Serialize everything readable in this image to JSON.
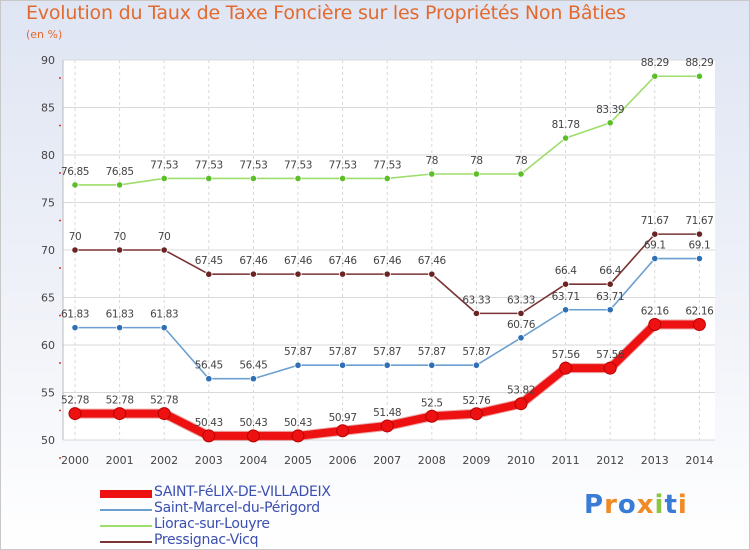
{
  "title": "Evolution du Taux de Taxe Foncière sur les Propriétés Non Bâties",
  "unit": "(en %)",
  "brand": {
    "text": "Proxiti",
    "letters": [
      "P",
      "r",
      "o",
      "x",
      "i",
      "t",
      "i"
    ]
  },
  "chart_data": {
    "type": "line",
    "title": "Evolution du Taux de Taxe Foncière sur les Propriétés Non Bâties",
    "ylabel": "(en %)",
    "xlabel": "",
    "ylim": [
      50,
      90
    ],
    "yticks": [
      50,
      55,
      60,
      65,
      70,
      75,
      80,
      85,
      90
    ],
    "x": [
      "2000",
      "2001",
      "2002",
      "2003",
      "2004",
      "2005",
      "2006",
      "2007",
      "2008",
      "2009",
      "2010",
      "2011",
      "2012",
      "2013",
      "2014"
    ],
    "grid": true,
    "legend_position": "bottom-left",
    "series": [
      {
        "name": "SAINT-FéLIX-DE-VILLADEIX",
        "color": "#ee1111",
        "marker": "#ee1111",
        "width": 8,
        "values": [
          52.78,
          52.78,
          52.78,
          50.43,
          50.43,
          50.43,
          50.97,
          51.48,
          52.5,
          52.76,
          53.82,
          57.56,
          57.56,
          62.16,
          62.16
        ],
        "labels": [
          "52.78",
          "52.78",
          "52.78",
          "50.43",
          "50.43",
          "50.43",
          "50.97",
          "51.48",
          "52.5",
          "52.76",
          "53.82",
          "57.56",
          "57.56",
          "62.16",
          "62.16"
        ]
      },
      {
        "name": "Saint-Marcel-du-Périgord",
        "color": "#6a9fd0",
        "marker": "#2f6fb5",
        "width": 1.6,
        "values": [
          61.83,
          61.83,
          61.83,
          56.45,
          56.45,
          57.87,
          57.87,
          57.87,
          57.87,
          57.87,
          60.76,
          63.71,
          63.71,
          69.1,
          69.1
        ],
        "labels": [
          "61.83",
          "61.83",
          "61.83",
          "56.45",
          "56.45",
          "57.87",
          "57.87",
          "57.87",
          "57.87",
          "57.87",
          "60.76",
          "63.71",
          "63.71",
          "69.1",
          "69.1"
        ]
      },
      {
        "name": "Liorac-sur-Louyre",
        "color": "#9ddd6b",
        "marker": "#5cbf2a",
        "width": 1.6,
        "values": [
          76.85,
          76.85,
          77.53,
          77.53,
          77.53,
          77.53,
          77.53,
          77.53,
          78,
          78,
          78,
          81.78,
          83.39,
          88.29,
          88.29
        ],
        "labels": [
          "76.85",
          "76.85",
          "77.53",
          "77.53",
          "77.53",
          "77.53",
          "77.53",
          "77.53",
          "78",
          "78",
          "78",
          "81.78",
          "83.39",
          "88.29",
          "88.29"
        ]
      },
      {
        "name": "Pressignac-Vicq",
        "color": "#7a3434",
        "marker": "#6a2424",
        "width": 1.6,
        "values": [
          70,
          70,
          70,
          67.45,
          67.46,
          67.46,
          67.46,
          67.46,
          67.46,
          63.33,
          63.33,
          66.4,
          66.4,
          71.67,
          71.67
        ],
        "labels": [
          "70",
          "70",
          "70",
          "67.45",
          "67.46",
          "67.46",
          "67.46",
          "67.46",
          "67.46",
          "63.33",
          "63.33",
          "66.4",
          "66.4",
          "71.67",
          "71.67"
        ]
      }
    ]
  }
}
